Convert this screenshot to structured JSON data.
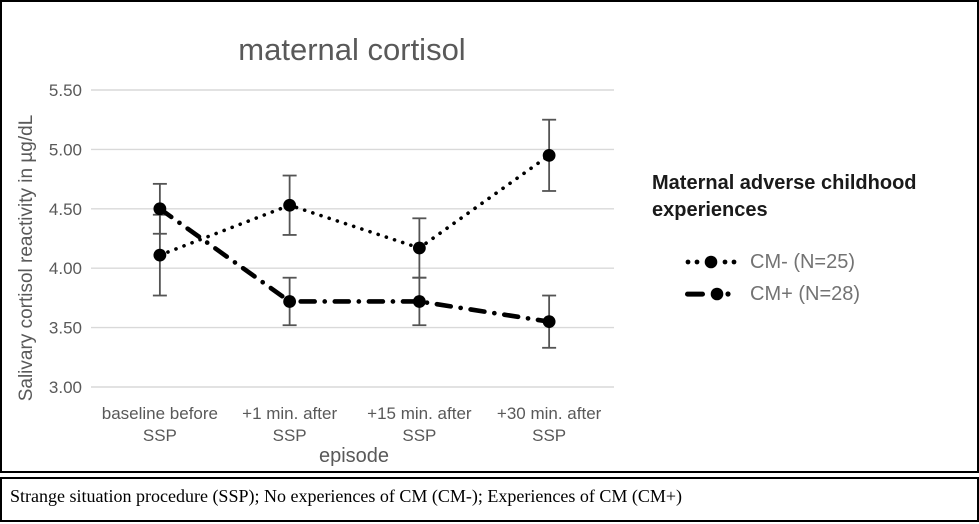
{
  "figure": {
    "caption": "Strange situation procedure (SSP); No experiences of CM (CM-); Experiences of CM (CM+)"
  },
  "chart_data": {
    "type": "line",
    "title": "maternal cortisol",
    "xlabel": "episode",
    "ylabel": "Salivary cortisol reactivity in µg/dL",
    "categories": [
      [
        "baseline before",
        "SSP"
      ],
      [
        "+1 min. after",
        "SSP"
      ],
      [
        "+15 min. after",
        "SSP"
      ],
      [
        "+30 min. after",
        "SSP"
      ]
    ],
    "yticks": [
      5.5,
      5.0,
      4.5,
      4.0,
      3.5,
      3.0
    ],
    "ytick_labels": [
      "5.50",
      "5.00",
      "4.50",
      "4.00",
      "3.50",
      "3.00"
    ],
    "ylim": [
      3.0,
      5.5
    ],
    "grid": true,
    "legend": {
      "title": "Maternal adverse childhood experiences",
      "position": "right"
    },
    "series": [
      {
        "name": "CM- (N=25)",
        "style": "dotted",
        "marker": "circle",
        "values": [
          4.11,
          4.53,
          4.17,
          4.95
        ],
        "errors": [
          0.34,
          0.25,
          0.25,
          0.3
        ]
      },
      {
        "name": "CM+ (N=28)",
        "style": "dashdot",
        "marker": "circle",
        "values": [
          4.5,
          3.72,
          3.72,
          3.55
        ],
        "errors": [
          0.21,
          0.2,
          0.2,
          0.22
        ]
      }
    ],
    "colors": {
      "series": "#000000",
      "grid": "#d9d9d9",
      "axis_text": "#595959",
      "error_bar": "#545454",
      "legend_title": "#1a1a1a",
      "legend_text": "#737373"
    }
  }
}
